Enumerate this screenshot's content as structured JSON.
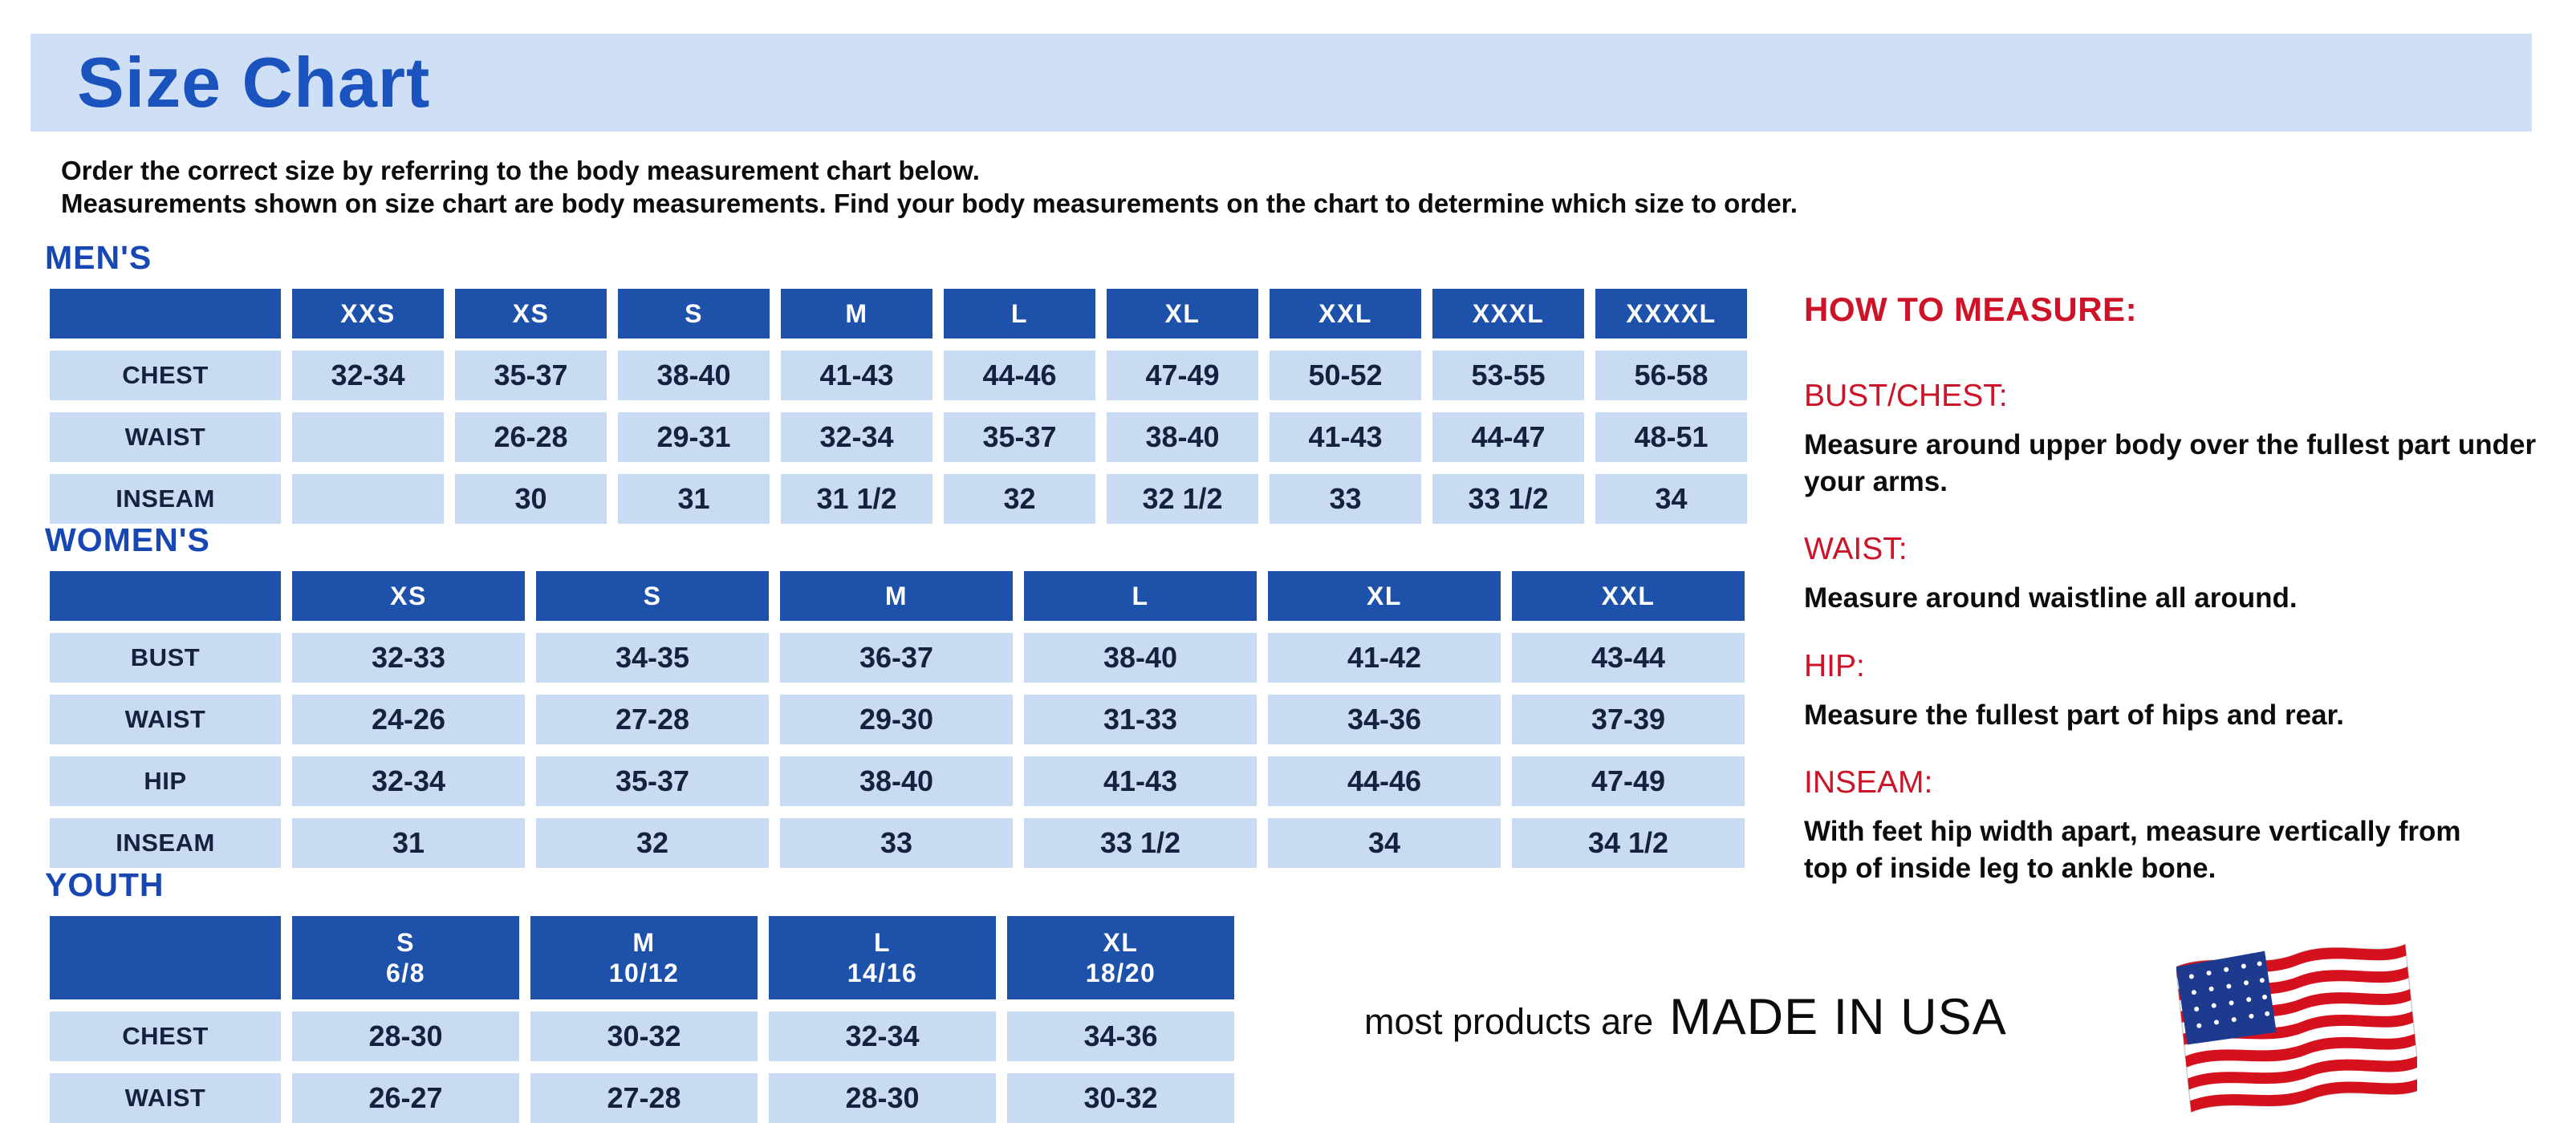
{
  "title": {
    "banner": "Size Chart"
  },
  "intro": {
    "line1": "Order the correct size by referring to the body measurement chart below.",
    "line2": "Measurements shown on size chart are body measurements.  Find your body measurements on the chart to determine which size to order."
  },
  "tables": {
    "mens": {
      "heading": "MEN'S",
      "columns": [
        "",
        "XXS",
        "XS",
        "S",
        "M",
        "L",
        "XL",
        "XXL",
        "XXXL",
        "XXXXL"
      ],
      "rows": [
        {
          "label": "CHEST",
          "values": [
            "32-34",
            "35-37",
            "38-40",
            "41-43",
            "44-46",
            "47-49",
            "50-52",
            "53-55",
            "56-58"
          ]
        },
        {
          "label": "WAIST",
          "values": [
            "",
            "26-28",
            "29-31",
            "32-34",
            "35-37",
            "38-40",
            "41-43",
            "44-47",
            "48-51"
          ]
        },
        {
          "label": "INSEAM",
          "values": [
            "",
            "30",
            "31",
            "31 1/2",
            "32",
            "32 1/2",
            "33",
            "33 1/2",
            "34"
          ]
        }
      ]
    },
    "womens": {
      "heading": "WOMEN'S",
      "columns": [
        "",
        "XS",
        "S",
        "M",
        "L",
        "XL",
        "XXL"
      ],
      "rows": [
        {
          "label": "BUST",
          "values": [
            "32-33",
            "34-35",
            "36-37",
            "38-40",
            "41-42",
            "43-44"
          ]
        },
        {
          "label": "WAIST",
          "values": [
            "24-26",
            "27-28",
            "29-30",
            "31-33",
            "34-36",
            "37-39"
          ]
        },
        {
          "label": "HIP",
          "values": [
            "32-34",
            "35-37",
            "38-40",
            "41-43",
            "44-46",
            "47-49"
          ]
        },
        {
          "label": "INSEAM",
          "values": [
            "31",
            "32",
            "33",
            "33 1/2",
            "34",
            "34 1/2"
          ]
        }
      ]
    },
    "youth": {
      "heading": "YOUTH",
      "columns": [
        "",
        "S\n6/8",
        "M\n10/12",
        "L\n14/16",
        "XL\n18/20"
      ],
      "rows": [
        {
          "label": "CHEST",
          "values": [
            "28-30",
            "30-32",
            "32-34",
            "34-36"
          ]
        },
        {
          "label": "WAIST",
          "values": [
            "26-27",
            "27-28",
            "28-30",
            "30-32"
          ]
        }
      ]
    }
  },
  "how_to_measure": {
    "heading": "HOW TO MEASURE:",
    "sections": [
      {
        "label": "BUST/CHEST:",
        "text": "Measure around upper body over the fullest part under your arms."
      },
      {
        "label": "WAIST:",
        "text": "Measure around waistline all around."
      },
      {
        "label": "HIP:",
        "text": "Measure the fullest part of hips and rear."
      },
      {
        "label": "INSEAM:",
        "text": "With feet hip width apart, measure vertically from top of inside leg to ankle bone."
      }
    ]
  },
  "footer": {
    "prefix": "most products are",
    "made_in": "MADE IN USA",
    "flag_icon": "us-flag-icon"
  },
  "colors": {
    "banner_bg": "#cfe0f6",
    "title_blue": "#1a52be",
    "section_heading_blue": "#1747b3",
    "table_header_blue": "#1e51a9",
    "table_cell_blue": "#c9dbf2",
    "cell_text_navy": "#15223d",
    "accent_red": "#cc1327",
    "flag_red": "#d6111e",
    "flag_canton_blue": "#1e3a8f"
  }
}
